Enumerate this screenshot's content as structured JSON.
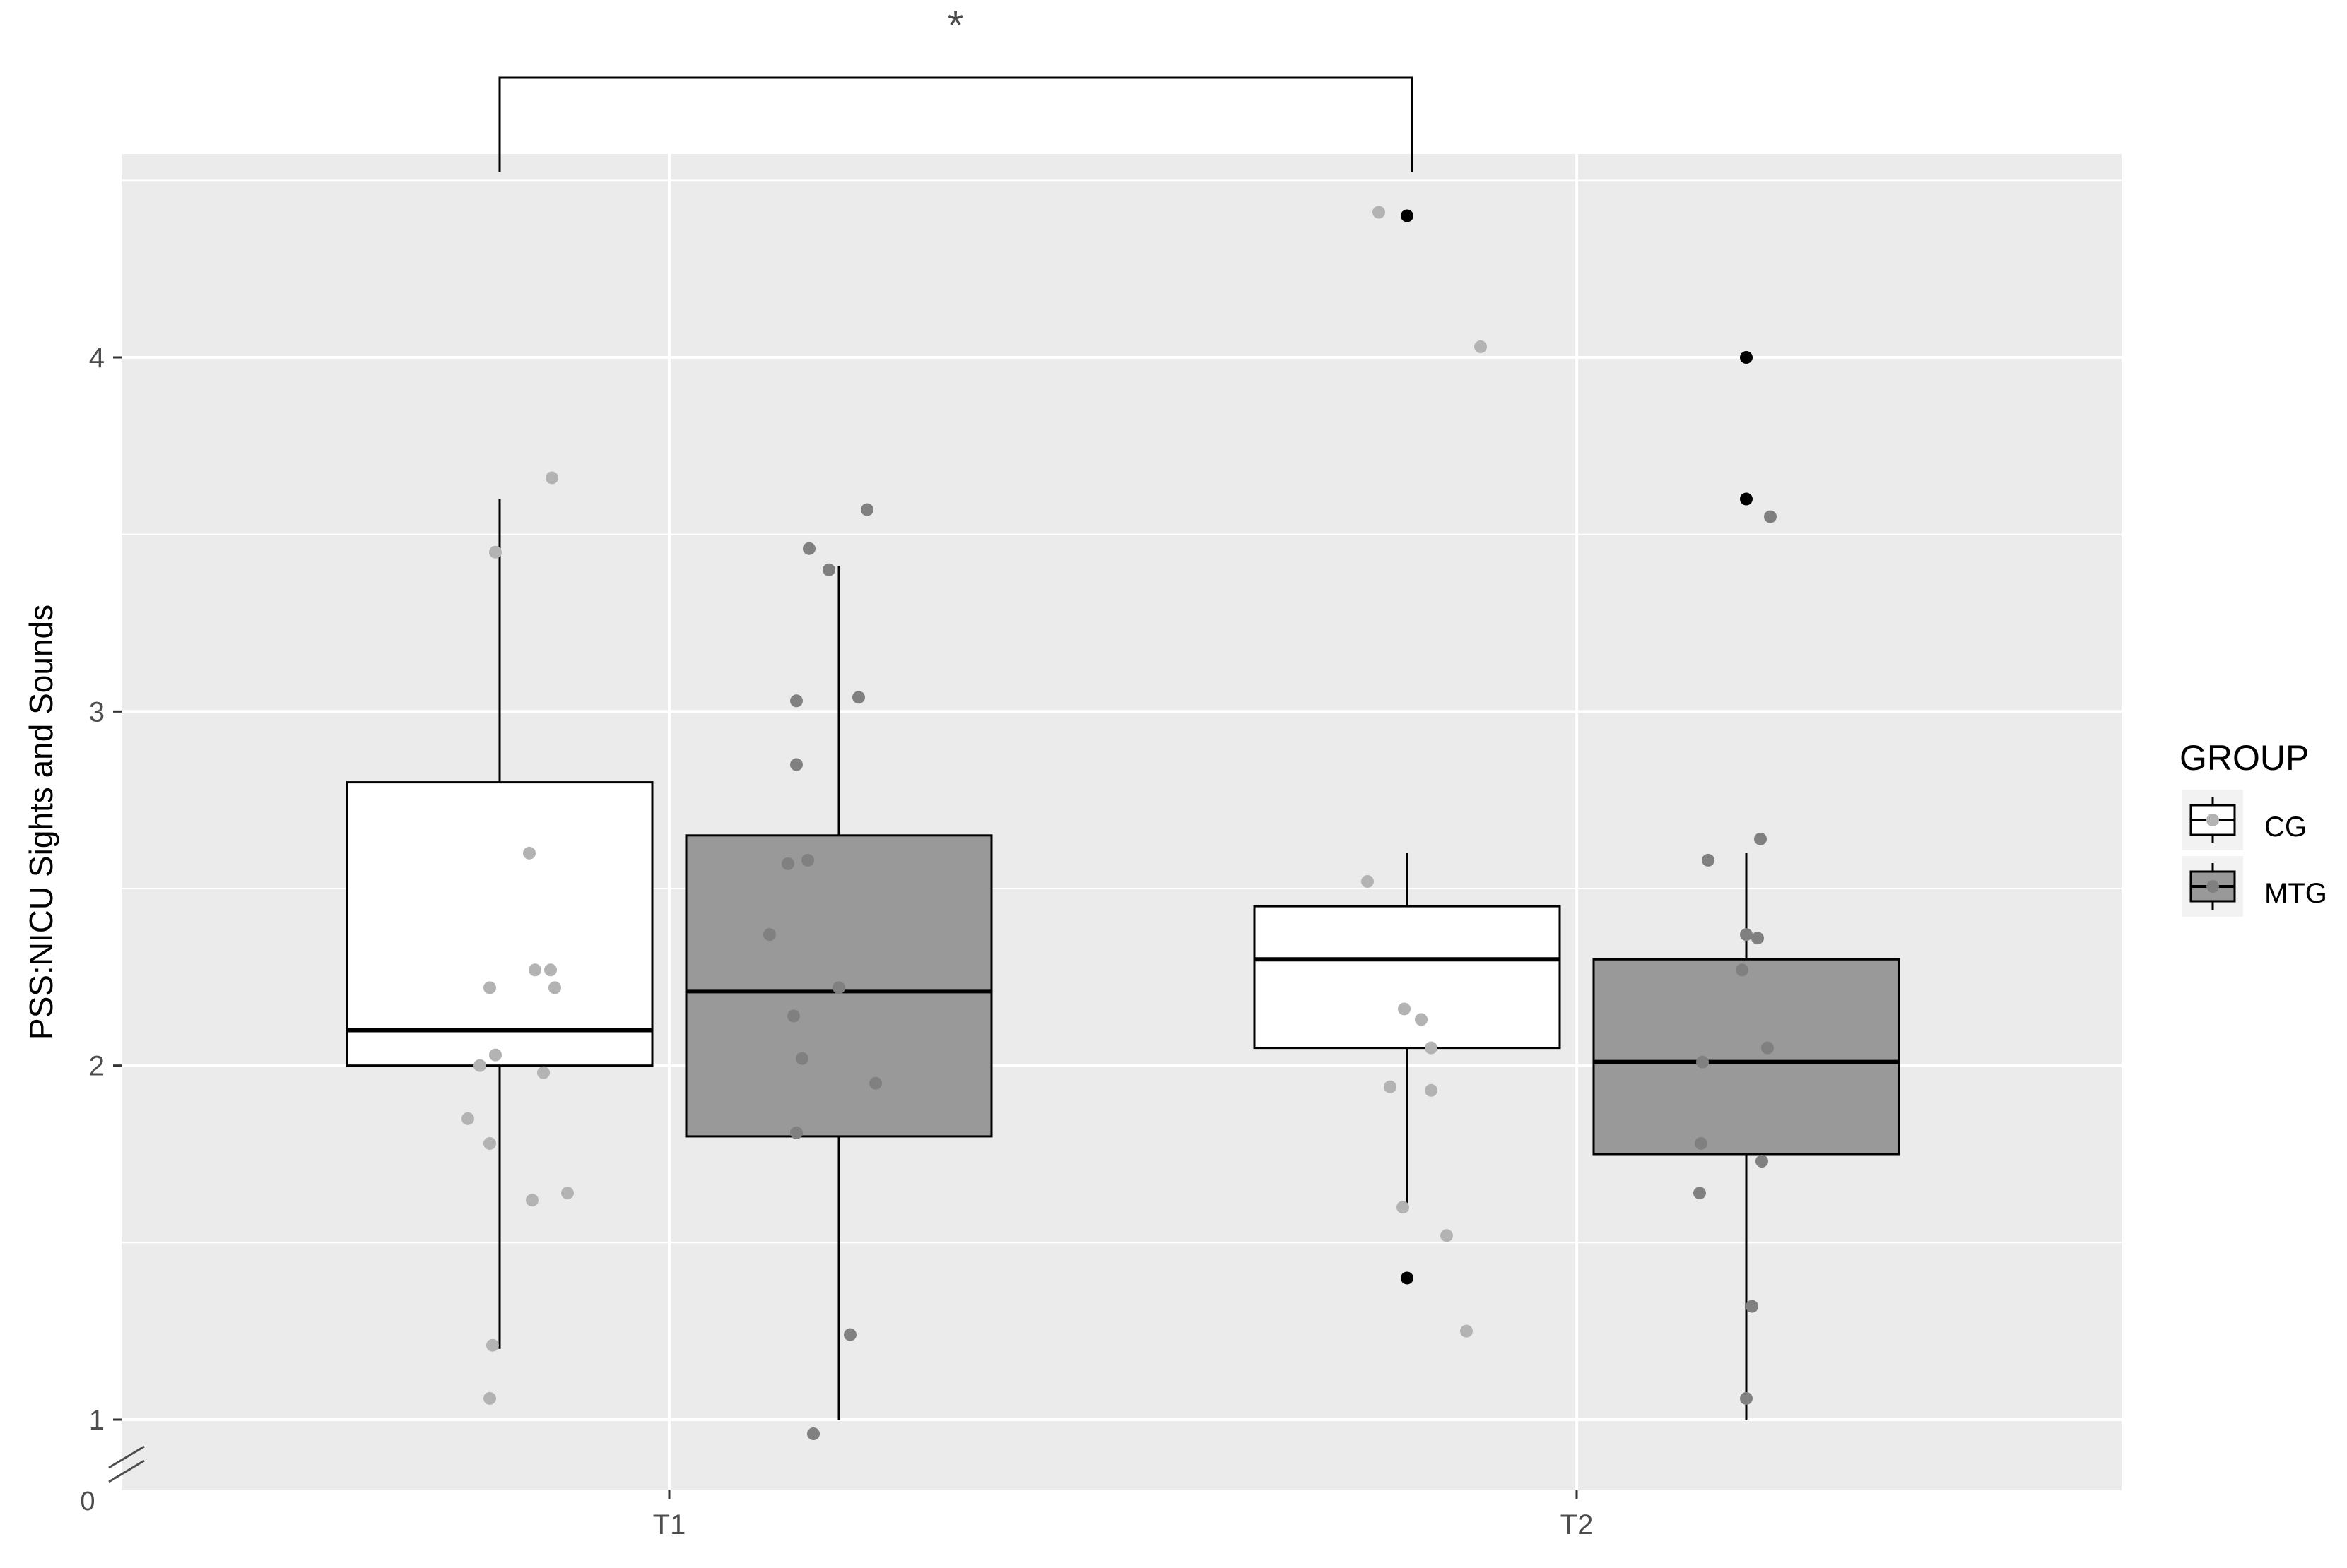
{
  "chart_data": {
    "type": "box",
    "title": "",
    "ylabel": "PSS:NICU Sights and Sounds",
    "xlabel": "",
    "categories": [
      "T1",
      "T2"
    ],
    "y_ticks": [
      1,
      2,
      3,
      4
    ],
    "y_axis_break_label": "0",
    "ylim": [
      0.8,
      4.55
    ],
    "grid": true,
    "legend_position": "right",
    "legend": {
      "title": "GROUP"
    },
    "significance": {
      "label": "*",
      "from": "CG T1",
      "to": "CG T2"
    },
    "series": [
      {
        "name": "CG",
        "fill": "#ffffff",
        "point_color": "#b3b3b3",
        "boxes": [
          {
            "category": "T1",
            "whisker_low": 1.2,
            "q1": 2.0,
            "median": 2.1,
            "q3": 2.8,
            "whisker_high": 3.6,
            "outliers": []
          },
          {
            "category": "T2",
            "whisker_low": 1.6,
            "q1": 2.05,
            "median": 2.3,
            "q3": 2.45,
            "whisker_high": 2.6,
            "outliers": [
              1.4,
              4.4
            ]
          }
        ],
        "points": [
          {
            "category": "T1",
            "jitter": -0.45,
            "y": 1.85
          },
          {
            "category": "T1",
            "jitter": -0.14,
            "y": 2.22
          },
          {
            "category": "T1",
            "jitter": -0.14,
            "y": 1.78
          },
          {
            "category": "T1",
            "jitter": -0.14,
            "y": 1.06
          },
          {
            "category": "T1",
            "jitter": -0.06,
            "y": 3.45
          },
          {
            "category": "T1",
            "jitter": 0.42,
            "y": 2.6
          },
          {
            "category": "T1",
            "jitter": 0.46,
            "y": 1.62
          },
          {
            "category": "T1",
            "jitter": 0.5,
            "y": 2.27
          },
          {
            "category": "T1",
            "jitter": 0.78,
            "y": 2.22
          },
          {
            "category": "T1",
            "jitter": 0.96,
            "y": 1.64
          },
          {
            "category": "T1",
            "jitter": 0.74,
            "y": 3.66
          },
          {
            "category": "T1",
            "jitter": 0.72,
            "y": 2.27
          },
          {
            "category": "T1",
            "jitter": -0.28,
            "y": 2.0
          },
          {
            "category": "T1",
            "jitter": -0.06,
            "y": 2.03
          },
          {
            "category": "T1",
            "jitter": 0.62,
            "y": 1.98
          },
          {
            "category": "T1",
            "jitter": -0.1,
            "y": 1.21
          },
          {
            "category": "T2",
            "jitter": -0.56,
            "y": 2.52
          },
          {
            "category": "T2",
            "jitter": -0.4,
            "y": 4.41
          },
          {
            "category": "T2",
            "jitter": -0.24,
            "y": 1.94
          },
          {
            "category": "T2",
            "jitter": -0.04,
            "y": 2.16
          },
          {
            "category": "T2",
            "jitter": -0.06,
            "y": 1.6
          },
          {
            "category": "T2",
            "jitter": 0.2,
            "y": 2.13
          },
          {
            "category": "T2",
            "jitter": 0.34,
            "y": 2.05
          },
          {
            "category": "T2",
            "jitter": 0.34,
            "y": 1.93
          },
          {
            "category": "T2",
            "jitter": 0.56,
            "y": 1.52
          },
          {
            "category": "T2",
            "jitter": 0.84,
            "y": 1.25
          },
          {
            "category": "T2",
            "jitter": 1.04,
            "y": 4.03
          }
        ]
      },
      {
        "name": "MTG",
        "fill": "#999999",
        "point_color": "#808080",
        "boxes": [
          {
            "category": "T1",
            "whisker_low": 1.0,
            "q1": 1.8,
            "median": 2.21,
            "q3": 2.65,
            "whisker_high": 3.41,
            "outliers": []
          },
          {
            "category": "T2",
            "whisker_low": 1.0,
            "q1": 1.75,
            "median": 2.01,
            "q3": 2.3,
            "whisker_high": 2.6,
            "outliers": [
              3.6,
              4.0
            ]
          }
        ],
        "points": [
          {
            "category": "T1",
            "jitter": -0.98,
            "y": 2.37
          },
          {
            "category": "T1",
            "jitter": -0.72,
            "y": 2.57
          },
          {
            "category": "T1",
            "jitter": -0.64,
            "y": 2.14
          },
          {
            "category": "T1",
            "jitter": -0.6,
            "y": 3.03
          },
          {
            "category": "T1",
            "jitter": -0.6,
            "y": 2.85
          },
          {
            "category": "T1",
            "jitter": -0.6,
            "y": 1.81
          },
          {
            "category": "T1",
            "jitter": -0.52,
            "y": 2.02
          },
          {
            "category": "T1",
            "jitter": -0.44,
            "y": 2.58
          },
          {
            "category": "T1",
            "jitter": -0.42,
            "y": 3.46
          },
          {
            "category": "T1",
            "jitter": -0.36,
            "y": 0.96
          },
          {
            "category": "T1",
            "jitter": -0.14,
            "y": 3.4
          },
          {
            "category": "T1",
            "jitter": 0.0,
            "y": 2.22
          },
          {
            "category": "T1",
            "jitter": 0.16,
            "y": 1.24
          },
          {
            "category": "T1",
            "jitter": 0.28,
            "y": 3.04
          },
          {
            "category": "T1",
            "jitter": 0.4,
            "y": 3.57
          },
          {
            "category": "T1",
            "jitter": 0.52,
            "y": 1.95
          },
          {
            "category": "T2",
            "jitter": -0.66,
            "y": 1.64
          },
          {
            "category": "T2",
            "jitter": -0.64,
            "y": 1.78
          },
          {
            "category": "T2",
            "jitter": -0.62,
            "y": 2.01
          },
          {
            "category": "T2",
            "jitter": -0.54,
            "y": 2.58
          },
          {
            "category": "T2",
            "jitter": -0.06,
            "y": 2.27
          },
          {
            "category": "T2",
            "jitter": 0.0,
            "y": 2.37
          },
          {
            "category": "T2",
            "jitter": 0.0,
            "y": 1.06
          },
          {
            "category": "T2",
            "jitter": 0.08,
            "y": 1.32
          },
          {
            "category": "T2",
            "jitter": 0.16,
            "y": 2.36
          },
          {
            "category": "T2",
            "jitter": 0.2,
            "y": 2.64
          },
          {
            "category": "T2",
            "jitter": 0.22,
            "y": 1.73
          },
          {
            "category": "T2",
            "jitter": 0.3,
            "y": 2.05
          },
          {
            "category": "T2",
            "jitter": 0.34,
            "y": 3.55
          }
        ]
      }
    ]
  },
  "colors": {
    "panel": "#ebebeb",
    "grid": "#ffffff",
    "outlier": "#000000",
    "line": "#000000",
    "text": "#4d4d4d"
  }
}
